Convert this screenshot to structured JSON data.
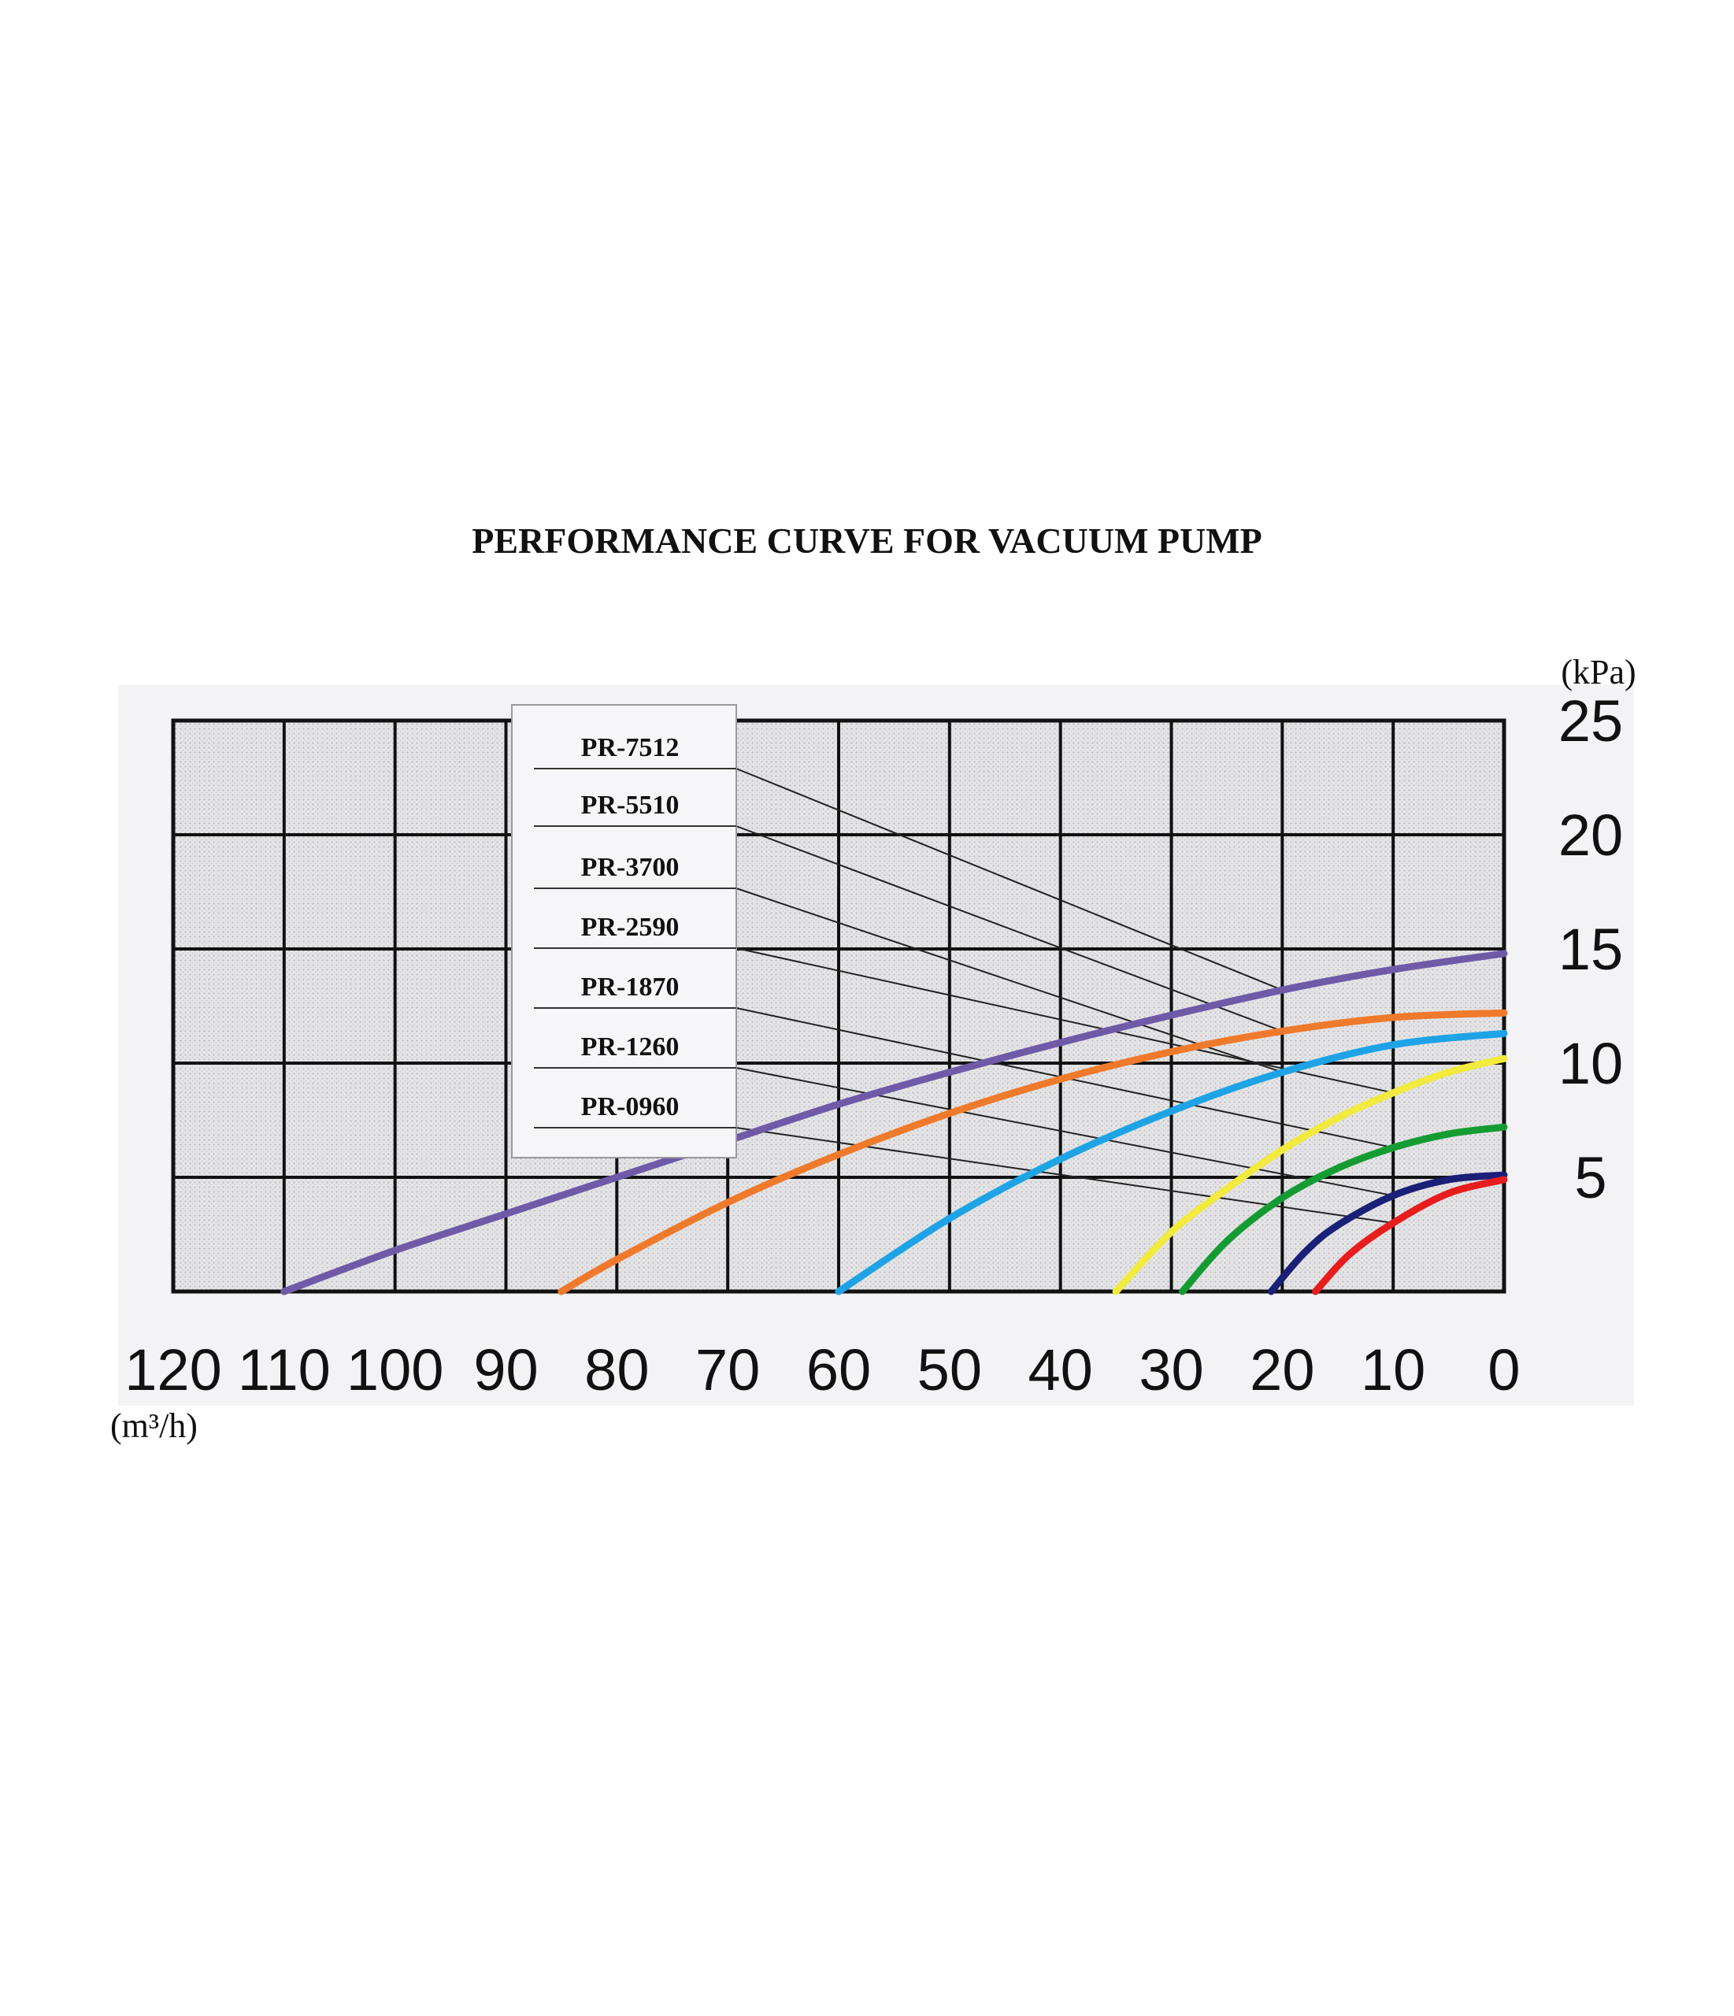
{
  "chart_data": {
    "type": "line",
    "title": "PERFORMANCE CURVE FOR VACUUM PUMP",
    "x_unit": "(m³/h)",
    "y_unit": "(kPa)",
    "x_ticks": [
      120,
      110,
      100,
      90,
      80,
      70,
      60,
      50,
      40,
      30,
      20,
      10,
      0
    ],
    "y_ticks": [
      25,
      20,
      15,
      10,
      5
    ],
    "xlim": [
      0,
      120
    ],
    "ylim": [
      0,
      25
    ],
    "x_reversed": true,
    "y_axis_side": "right",
    "grid": true,
    "legend_placement": "top-left-inside",
    "series": [
      {
        "name": "PR-7512",
        "color": "#6f5aa8",
        "x": [
          110,
          100,
          90,
          80,
          70,
          60,
          50,
          40,
          30,
          20,
          10,
          0
        ],
        "y": [
          0,
          1.8,
          3.4,
          5.0,
          6.6,
          8.2,
          9.6,
          10.9,
          12.1,
          13.2,
          14.1,
          14.8
        ]
      },
      {
        "name": "PR-5510",
        "color": "#f07a2c",
        "x": [
          85,
          80,
          70,
          60,
          50,
          40,
          30,
          20,
          10,
          0
        ],
        "y": [
          0,
          1.4,
          3.9,
          6.0,
          7.8,
          9.3,
          10.5,
          11.4,
          12.0,
          12.2
        ]
      },
      {
        "name": "PR-3700",
        "color": "#1ea3e6",
        "x": [
          60,
          50,
          40,
          30,
          20,
          10,
          0
        ],
        "y": [
          0,
          3.2,
          5.8,
          7.9,
          9.6,
          10.8,
          11.3
        ]
      },
      {
        "name": "PR-2590",
        "color": "#f2ea3c",
        "x": [
          35,
          30,
          25,
          20,
          15,
          10,
          5,
          0
        ],
        "y": [
          0,
          2.6,
          4.5,
          6.2,
          7.6,
          8.7,
          9.6,
          10.2
        ]
      },
      {
        "name": "PR-1870",
        "color": "#149c33",
        "x": [
          29,
          25,
          20,
          15,
          10,
          5,
          0
        ],
        "y": [
          0,
          2.2,
          4.1,
          5.4,
          6.3,
          6.9,
          7.2
        ]
      },
      {
        "name": "PR-1260",
        "color": "#1a1f78",
        "x": [
          21,
          18,
          15,
          10,
          5,
          0
        ],
        "y": [
          0,
          1.7,
          2.9,
          4.2,
          4.9,
          5.1
        ]
      },
      {
        "name": "PR-0960",
        "color": "#e81d1d",
        "x": [
          17,
          14,
          10,
          5,
          0
        ],
        "y": [
          0,
          1.6,
          3.0,
          4.3,
          4.9
        ]
      }
    ]
  }
}
